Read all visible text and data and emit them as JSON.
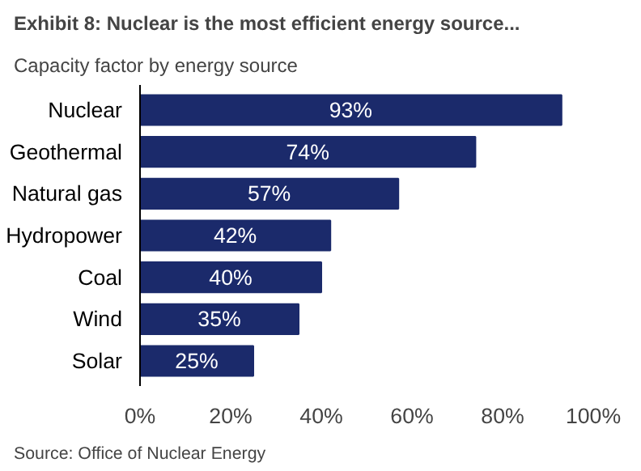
{
  "chart_data": {
    "type": "bar",
    "orientation": "horizontal",
    "title": "Exhibit 8: Nuclear is the most efficient energy source...",
    "subtitle": "Capacity factor by energy source",
    "categories": [
      "Nuclear",
      "Geothermal",
      "Natural gas",
      "Hydropower",
      "Coal",
      "Wind",
      "Solar"
    ],
    "values": [
      93,
      74,
      57,
      42,
      40,
      35,
      25
    ],
    "value_labels": [
      "93%",
      "74%",
      "57%",
      "42%",
      "40%",
      "35%",
      "25%"
    ],
    "color": "#1b2a6b",
    "xlim": [
      0,
      100
    ],
    "xticks": [
      {
        "value": 0,
        "label": "0%"
      },
      {
        "value": 20,
        "label": "20%"
      },
      {
        "value": 40,
        "label": "40%"
      },
      {
        "value": 60,
        "label": "60%"
      },
      {
        "value": 80,
        "label": "80%"
      },
      {
        "value": 100,
        "label": "100%"
      }
    ],
    "grid": false,
    "annotations": [
      "Source: Office of Nuclear Energy"
    ]
  }
}
